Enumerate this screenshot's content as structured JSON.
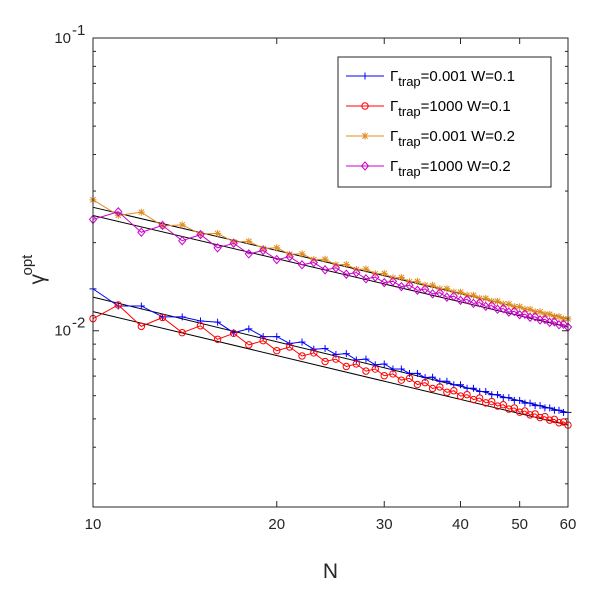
{
  "chart_data": {
    "type": "line",
    "title": "",
    "xlabel": "N",
    "ylabel": "γ^opt",
    "ylabel_base": "γ",
    "ylabel_sup": "opt",
    "xscale": "log",
    "yscale": "log",
    "xlim": [
      10,
      60
    ],
    "ylim": [
      0.0025,
      0.1
    ],
    "x_ticks": [
      10,
      20,
      30,
      40,
      50,
      60
    ],
    "x_tick_labels": [
      "10",
      "20",
      "30",
      "40",
      "50",
      "60"
    ],
    "y_ticks": [
      0.01,
      0.1
    ],
    "y_tick_labels": [
      {
        "base": "10",
        "exp": "-2"
      },
      {
        "base": "10",
        "exp": "-1"
      }
    ],
    "grid": false,
    "legend_position": "top-right",
    "x": [
      10,
      11,
      12,
      13,
      14,
      15,
      16,
      17,
      18,
      19,
      20,
      21,
      22,
      23,
      24,
      25,
      26,
      27,
      28,
      29,
      30,
      31,
      32,
      33,
      34,
      35,
      36,
      37,
      38,
      39,
      40,
      41,
      42,
      43,
      44,
      45,
      46,
      47,
      48,
      49,
      50,
      51,
      52,
      53,
      54,
      55,
      56,
      57,
      58,
      59,
      60
    ],
    "series": [
      {
        "label_main": "Γ",
        "label_sub": "trap",
        "label_rest": "=0.001   W=0.1",
        "color": "#0000ff",
        "marker": "plus",
        "values": [
          0.0139,
          0.01215,
          0.01215,
          0.01115,
          0.01115,
          0.0108,
          0.0107,
          0.00985,
          0.01015,
          0.00955,
          0.00955,
          0.00905,
          0.00915,
          0.00865,
          0.0087,
          0.0083,
          0.00835,
          0.00795,
          0.008,
          0.00765,
          0.0077,
          0.0074,
          0.0074,
          0.00715,
          0.00715,
          0.00692,
          0.00694,
          0.00672,
          0.00672,
          0.00654,
          0.00654,
          0.00636,
          0.00636,
          0.0062,
          0.0062,
          0.00605,
          0.00605,
          0.00591,
          0.00591,
          0.00578,
          0.00578,
          0.00566,
          0.00566,
          0.00555,
          0.00555,
          0.00545,
          0.00545,
          0.00535,
          0.00535,
          0.00526,
          0.00526
        ]
      },
      {
        "label_main": "Γ",
        "label_sub": "trap",
        "label_rest": "=1000   W=0.1",
        "color": "#ff0000",
        "marker": "circle",
        "values": [
          0.011,
          0.01225,
          0.01035,
          0.0111,
          0.00985,
          0.0104,
          0.00935,
          0.0098,
          0.00895,
          0.00925,
          0.00855,
          0.0088,
          0.0082,
          0.0084,
          0.00785,
          0.008,
          0.00755,
          0.0077,
          0.00728,
          0.0074,
          0.00702,
          0.00712,
          0.00678,
          0.00688,
          0.00655,
          0.00665,
          0.00635,
          0.00643,
          0.00616,
          0.00624,
          0.00598,
          0.00605,
          0.00582,
          0.00589,
          0.00567,
          0.00573,
          0.00553,
          0.00559,
          0.0054,
          0.00545,
          0.00527,
          0.00532,
          0.00516,
          0.0052,
          0.00505,
          0.00509,
          0.00495,
          0.00498,
          0.00485,
          0.00488,
          0.00476
        ]
      },
      {
        "label_main": "Γ",
        "label_sub": "trap",
        "label_rest": "=0.001   W=0.2",
        "color": "#e08b1e",
        "marker": "star",
        "values": [
          0.028,
          0.0248,
          0.0254,
          0.0228,
          0.023,
          0.0214,
          0.0215,
          0.0201,
          0.0202,
          0.0191,
          0.0192,
          0.01825,
          0.0183,
          0.0175,
          0.01755,
          0.0168,
          0.01685,
          0.0162,
          0.01625,
          0.01565,
          0.0157,
          0.01515,
          0.0152,
          0.0147,
          0.01475,
          0.0143,
          0.0143,
          0.0139,
          0.01392,
          0.01355,
          0.01355,
          0.01322,
          0.01322,
          0.0129,
          0.0129,
          0.01261,
          0.01261,
          0.01234,
          0.01234,
          0.01208,
          0.01208,
          0.01184,
          0.01184,
          0.01161,
          0.01161,
          0.01139,
          0.01139,
          0.01118,
          0.01118,
          0.01098,
          0.01098
        ]
      },
      {
        "label_main": "Γ",
        "label_sub": "trap",
        "label_rest": "=1000   W=0.2",
        "color": "#cc00cc",
        "marker": "diamond",
        "values": [
          0.024,
          0.0255,
          0.0217,
          0.0229,
          0.0203,
          0.0213,
          0.0192,
          0.0199,
          0.0183,
          0.0188,
          0.0175,
          0.0179,
          0.0168,
          0.0171,
          0.01615,
          0.0164,
          0.0156,
          0.0158,
          0.01505,
          0.01525,
          0.0146,
          0.01475,
          0.01415,
          0.0143,
          0.01375,
          0.01388,
          0.01337,
          0.01348,
          0.01302,
          0.01312,
          0.0127,
          0.01278,
          0.0124,
          0.01247,
          0.01211,
          0.01218,
          0.01184,
          0.0119,
          0.01158,
          0.01164,
          0.01134,
          0.01139,
          0.01111,
          0.01116,
          0.01089,
          0.01093,
          0.01068,
          0.01072,
          0.01048,
          0.01052,
          0.01029
        ]
      }
    ]
  }
}
